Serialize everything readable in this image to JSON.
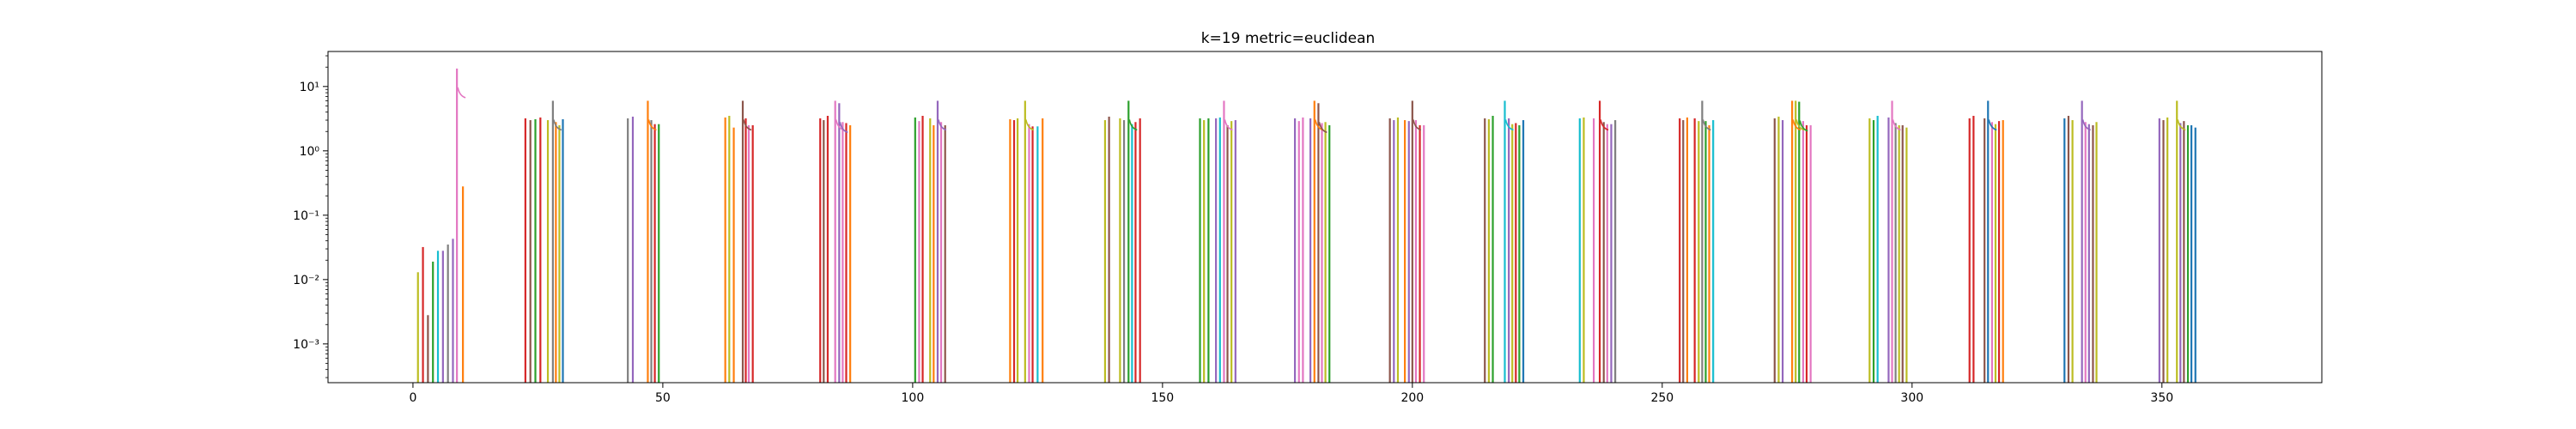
{
  "chart_data": {
    "type": "bar",
    "title": "k=19 metric=euclidean",
    "xlabel": "",
    "ylabel": "",
    "y_scale": "log",
    "xlim": [
      -17,
      382
    ],
    "ylim": [
      0.00025,
      35
    ],
    "grid": false,
    "legend": "none",
    "x_ticks": [
      0,
      50,
      100,
      150,
      200,
      250,
      300,
      350
    ],
    "x_tick_labels": [
      "0",
      "50",
      "100",
      "150",
      "200",
      "250",
      "300",
      "350"
    ],
    "y_ticks": [
      0.001,
      0.01,
      0.1,
      1,
      10
    ],
    "y_tick_labels": [
      "10⁻³",
      "10⁻²",
      "10⁻¹",
      "10⁰",
      "10¹"
    ],
    "palette": [
      "#1f77b4",
      "#ff7f0e",
      "#2ca02c",
      "#d62728",
      "#9467bd",
      "#8c564b",
      "#e377c2",
      "#7f7f7f",
      "#bcbd22",
      "#17becf"
    ],
    "bars": [
      {
        "x": 1,
        "y": 0.013,
        "color": "#bcbd22"
      },
      {
        "x": 2,
        "y": 0.032,
        "color": "#d62728"
      },
      {
        "x": 3,
        "y": 0.0028,
        "color": "#8c564b"
      },
      {
        "x": 4,
        "y": 0.019,
        "color": "#2ca02c"
      },
      {
        "x": 5,
        "y": 0.028,
        "color": "#17becf"
      },
      {
        "x": 6,
        "y": 0.028,
        "color": "#9467bd"
      },
      {
        "x": 7,
        "y": 0.035,
        "color": "#7f7f7f"
      },
      {
        "x": 8,
        "y": 0.043,
        "color": "#9467bd"
      },
      {
        "x": 8.8,
        "y": 19,
        "color": "#e377c2"
      },
      {
        "x": 10,
        "y": 0.28,
        "color": "#ff7f0e"
      },
      {
        "x": 22.5,
        "y": 3.2,
        "color": "#d62728"
      },
      {
        "x": 23.5,
        "y": 3.0,
        "color": "#8c564b"
      },
      {
        "x": 24.5,
        "y": 3.1,
        "color": "#2ca02c"
      },
      {
        "x": 25.5,
        "y": 3.3,
        "color": "#d62728"
      },
      {
        "x": 27,
        "y": 3.0,
        "color": "#bcbd22"
      },
      {
        "x": 28,
        "y": 6.0,
        "color": "#7f7f7f"
      },
      {
        "x": 28.6,
        "y": 2.8,
        "color": "#ff7f0e"
      },
      {
        "x": 29.3,
        "y": 2.5,
        "color": "#bcbd22"
      },
      {
        "x": 30,
        "y": 3.1,
        "color": "#1f77b4"
      },
      {
        "x": 43,
        "y": 3.2,
        "color": "#7f7f7f"
      },
      {
        "x": 44,
        "y": 3.4,
        "color": "#9467bd"
      },
      {
        "x": 47,
        "y": 6.0,
        "color": "#ff7f0e"
      },
      {
        "x": 47.7,
        "y": 3.0,
        "color": "#7f7f7f"
      },
      {
        "x": 48.4,
        "y": 2.6,
        "color": "#d62728"
      },
      {
        "x": 49.2,
        "y": 2.6,
        "color": "#2ca02c"
      },
      {
        "x": 62.5,
        "y": 3.3,
        "color": "#ff7f0e"
      },
      {
        "x": 63.3,
        "y": 3.5,
        "color": "#bcbd22"
      },
      {
        "x": 64.2,
        "y": 2.3,
        "color": "#ff7f0e"
      },
      {
        "x": 66,
        "y": 6.0,
        "color": "#8c564b"
      },
      {
        "x": 66.6,
        "y": 3.2,
        "color": "#d62728"
      },
      {
        "x": 67.2,
        "y": 2.5,
        "color": "#e377c2"
      },
      {
        "x": 68,
        "y": 2.5,
        "color": "#d62728"
      },
      {
        "x": 81.5,
        "y": 3.2,
        "color": "#d62728"
      },
      {
        "x": 82.2,
        "y": 3.0,
        "color": "#8c564b"
      },
      {
        "x": 83,
        "y": 3.5,
        "color": "#d62728"
      },
      {
        "x": 84.5,
        "y": 6.0,
        "color": "#e377c2"
      },
      {
        "x": 85.3,
        "y": 5.5,
        "color": "#9467bd"
      },
      {
        "x": 86,
        "y": 2.8,
        "color": "#e377c2"
      },
      {
        "x": 86.7,
        "y": 2.7,
        "color": "#d62728"
      },
      {
        "x": 87.5,
        "y": 2.5,
        "color": "#ff7f0e"
      },
      {
        "x": 100.5,
        "y": 3.3,
        "color": "#2ca02c"
      },
      {
        "x": 101.3,
        "y": 2.9,
        "color": "#e377c2"
      },
      {
        "x": 102,
        "y": 3.5,
        "color": "#d62728"
      },
      {
        "x": 103.5,
        "y": 3.2,
        "color": "#bcbd22"
      },
      {
        "x": 104.2,
        "y": 2.5,
        "color": "#ff7f0e"
      },
      {
        "x": 105,
        "y": 6.0,
        "color": "#9467bd"
      },
      {
        "x": 105.7,
        "y": 2.8,
        "color": "#e377c2"
      },
      {
        "x": 106.5,
        "y": 2.5,
        "color": "#8c564b"
      },
      {
        "x": 119.5,
        "y": 3.1,
        "color": "#ff7f0e"
      },
      {
        "x": 120.3,
        "y": 3.0,
        "color": "#d62728"
      },
      {
        "x": 121,
        "y": 3.2,
        "color": "#bcbd22"
      },
      {
        "x": 122.5,
        "y": 6.0,
        "color": "#bcbd22"
      },
      {
        "x": 123.3,
        "y": 2.6,
        "color": "#e377c2"
      },
      {
        "x": 124,
        "y": 2.4,
        "color": "#d62728"
      },
      {
        "x": 125,
        "y": 2.4,
        "color": "#17becf"
      },
      {
        "x": 126,
        "y": 3.2,
        "color": "#ff7f0e"
      },
      {
        "x": 138.5,
        "y": 3.0,
        "color": "#bcbd22"
      },
      {
        "x": 139.3,
        "y": 3.4,
        "color": "#8c564b"
      },
      {
        "x": 141.5,
        "y": 3.2,
        "color": "#bcbd22"
      },
      {
        "x": 142.3,
        "y": 3.0,
        "color": "#7f7f7f"
      },
      {
        "x": 143.2,
        "y": 6.0,
        "color": "#2ca02c"
      },
      {
        "x": 143.9,
        "y": 2.6,
        "color": "#17becf"
      },
      {
        "x": 144.6,
        "y": 2.8,
        "color": "#d62728"
      },
      {
        "x": 145.5,
        "y": 3.2,
        "color": "#d62728"
      },
      {
        "x": 157.5,
        "y": 3.2,
        "color": "#2ca02c"
      },
      {
        "x": 158.3,
        "y": 3.0,
        "color": "#bcbd22"
      },
      {
        "x": 159.2,
        "y": 3.2,
        "color": "#2ca02c"
      },
      {
        "x": 160.7,
        "y": 3.2,
        "color": "#9467bd"
      },
      {
        "x": 161.5,
        "y": 3.3,
        "color": "#17becf"
      },
      {
        "x": 162.3,
        "y": 6.0,
        "color": "#e377c2"
      },
      {
        "x": 163,
        "y": 2.5,
        "color": "#8c564b"
      },
      {
        "x": 163.8,
        "y": 2.9,
        "color": "#bcbd22"
      },
      {
        "x": 164.6,
        "y": 3.0,
        "color": "#9467bd"
      },
      {
        "x": 176.5,
        "y": 3.2,
        "color": "#9467bd"
      },
      {
        "x": 177.3,
        "y": 2.9,
        "color": "#e377c2"
      },
      {
        "x": 178.1,
        "y": 3.3,
        "color": "#e377c2"
      },
      {
        "x": 179.6,
        "y": 3.2,
        "color": "#9467bd"
      },
      {
        "x": 180.4,
        "y": 6.0,
        "color": "#ff7f0e"
      },
      {
        "x": 181.2,
        "y": 5.5,
        "color": "#8c564b"
      },
      {
        "x": 181.9,
        "y": 2.7,
        "color": "#e377c2"
      },
      {
        "x": 182.6,
        "y": 2.8,
        "color": "#bcbd22"
      },
      {
        "x": 183.4,
        "y": 2.5,
        "color": "#2ca02c"
      },
      {
        "x": 195.5,
        "y": 3.2,
        "color": "#8c564b"
      },
      {
        "x": 196.3,
        "y": 3.0,
        "color": "#9467bd"
      },
      {
        "x": 197.1,
        "y": 3.3,
        "color": "#bcbd22"
      },
      {
        "x": 198.5,
        "y": 3.0,
        "color": "#ff7f0e"
      },
      {
        "x": 199.3,
        "y": 2.9,
        "color": "#9467bd"
      },
      {
        "x": 200,
        "y": 6.0,
        "color": "#8c564b"
      },
      {
        "x": 200.7,
        "y": 3.0,
        "color": "#e377c2"
      },
      {
        "x": 201.5,
        "y": 2.5,
        "color": "#d62728"
      },
      {
        "x": 202.3,
        "y": 2.5,
        "color": "#e377c2"
      },
      {
        "x": 214.5,
        "y": 3.2,
        "color": "#8c564b"
      },
      {
        "x": 215.3,
        "y": 3.1,
        "color": "#bcbd22"
      },
      {
        "x": 216.1,
        "y": 3.5,
        "color": "#2ca02c"
      },
      {
        "x": 218.5,
        "y": 6.0,
        "color": "#17becf"
      },
      {
        "x": 219.3,
        "y": 3.2,
        "color": "#9467bd"
      },
      {
        "x": 220,
        "y": 2.6,
        "color": "#bcbd22"
      },
      {
        "x": 220.7,
        "y": 2.7,
        "color": "#d62728"
      },
      {
        "x": 221.4,
        "y": 2.5,
        "color": "#2ca02c"
      },
      {
        "x": 222.2,
        "y": 3.0,
        "color": "#1f77b4"
      },
      {
        "x": 233.5,
        "y": 3.2,
        "color": "#17becf"
      },
      {
        "x": 234.3,
        "y": 3.3,
        "color": "#bcbd22"
      },
      {
        "x": 236.3,
        "y": 3.2,
        "color": "#e377c2"
      },
      {
        "x": 237.5,
        "y": 6.0,
        "color": "#d62728"
      },
      {
        "x": 238.3,
        "y": 2.8,
        "color": "#8c564b"
      },
      {
        "x": 239,
        "y": 2.6,
        "color": "#e377c2"
      },
      {
        "x": 239.8,
        "y": 2.6,
        "color": "#9467bd"
      },
      {
        "x": 240.6,
        "y": 3.0,
        "color": "#7f7f7f"
      },
      {
        "x": 253.5,
        "y": 3.2,
        "color": "#d62728"
      },
      {
        "x": 254.2,
        "y": 3.0,
        "color": "#8c564b"
      },
      {
        "x": 255,
        "y": 3.3,
        "color": "#ff7f0e"
      },
      {
        "x": 256.5,
        "y": 3.2,
        "color": "#d62728"
      },
      {
        "x": 257.3,
        "y": 2.9,
        "color": "#bcbd22"
      },
      {
        "x": 258,
        "y": 6.0,
        "color": "#7f7f7f"
      },
      {
        "x": 258.7,
        "y": 2.9,
        "color": "#2ca02c"
      },
      {
        "x": 259.4,
        "y": 2.5,
        "color": "#ff7f0e"
      },
      {
        "x": 260.2,
        "y": 3.0,
        "color": "#17becf"
      },
      {
        "x": 272.5,
        "y": 3.2,
        "color": "#8c564b"
      },
      {
        "x": 273.3,
        "y": 3.4,
        "color": "#bcbd22"
      },
      {
        "x": 274.1,
        "y": 3.0,
        "color": "#9467bd"
      },
      {
        "x": 276,
        "y": 6.0,
        "color": "#ff7f0e"
      },
      {
        "x": 276.7,
        "y": 6.0,
        "color": "#bcbd22"
      },
      {
        "x": 277.4,
        "y": 5.8,
        "color": "#2ca02c"
      },
      {
        "x": 278.2,
        "y": 2.9,
        "color": "#e377c2"
      },
      {
        "x": 278.9,
        "y": 2.5,
        "color": "#d62728"
      },
      {
        "x": 279.7,
        "y": 2.5,
        "color": "#e377c2"
      },
      {
        "x": 291.5,
        "y": 3.2,
        "color": "#bcbd22"
      },
      {
        "x": 292.3,
        "y": 3.0,
        "color": "#2ca02c"
      },
      {
        "x": 293.1,
        "y": 3.5,
        "color": "#17becf"
      },
      {
        "x": 295.3,
        "y": 3.3,
        "color": "#9467bd"
      },
      {
        "x": 296,
        "y": 6.0,
        "color": "#e377c2"
      },
      {
        "x": 296.7,
        "y": 2.7,
        "color": "#7f7f7f"
      },
      {
        "x": 297.4,
        "y": 2.5,
        "color": "#bcbd22"
      },
      {
        "x": 298.1,
        "y": 2.5,
        "color": "#8c564b"
      },
      {
        "x": 298.9,
        "y": 2.3,
        "color": "#bcbd22"
      },
      {
        "x": 311.5,
        "y": 3.2,
        "color": "#d62728"
      },
      {
        "x": 312.3,
        "y": 3.5,
        "color": "#d62728"
      },
      {
        "x": 314.5,
        "y": 3.2,
        "color": "#8c564b"
      },
      {
        "x": 315.2,
        "y": 6.0,
        "color": "#1f77b4"
      },
      {
        "x": 316,
        "y": 2.8,
        "color": "#e377c2"
      },
      {
        "x": 316.7,
        "y": 2.6,
        "color": "#bcbd22"
      },
      {
        "x": 317.4,
        "y": 2.9,
        "color": "#d62728"
      },
      {
        "x": 318.2,
        "y": 3.0,
        "color": "#ff7f0e"
      },
      {
        "x": 330.5,
        "y": 3.2,
        "color": "#1f77b4"
      },
      {
        "x": 331.3,
        "y": 3.5,
        "color": "#8c564b"
      },
      {
        "x": 332.1,
        "y": 3.0,
        "color": "#bcbd22"
      },
      {
        "x": 334,
        "y": 6.0,
        "color": "#9467bd"
      },
      {
        "x": 334.7,
        "y": 2.8,
        "color": "#e377c2"
      },
      {
        "x": 335.4,
        "y": 2.6,
        "color": "#9467bd"
      },
      {
        "x": 336.2,
        "y": 2.5,
        "color": "#8c564b"
      },
      {
        "x": 336.9,
        "y": 2.8,
        "color": "#bcbd22"
      },
      {
        "x": 349.5,
        "y": 3.2,
        "color": "#9467bd"
      },
      {
        "x": 350.3,
        "y": 3.0,
        "color": "#8c564b"
      },
      {
        "x": 351.1,
        "y": 3.3,
        "color": "#bcbd22"
      },
      {
        "x": 353,
        "y": 6.0,
        "color": "#bcbd22"
      },
      {
        "x": 353.7,
        "y": 2.7,
        "color": "#9467bd"
      },
      {
        "x": 354.4,
        "y": 2.9,
        "color": "#8c564b"
      },
      {
        "x": 355.2,
        "y": 2.5,
        "color": "#2ca02c"
      },
      {
        "x": 355.9,
        "y": 2.5,
        "color": "#1f77b4"
      },
      {
        "x": 356.7,
        "y": 2.3,
        "color": "#1f77b4"
      }
    ]
  }
}
